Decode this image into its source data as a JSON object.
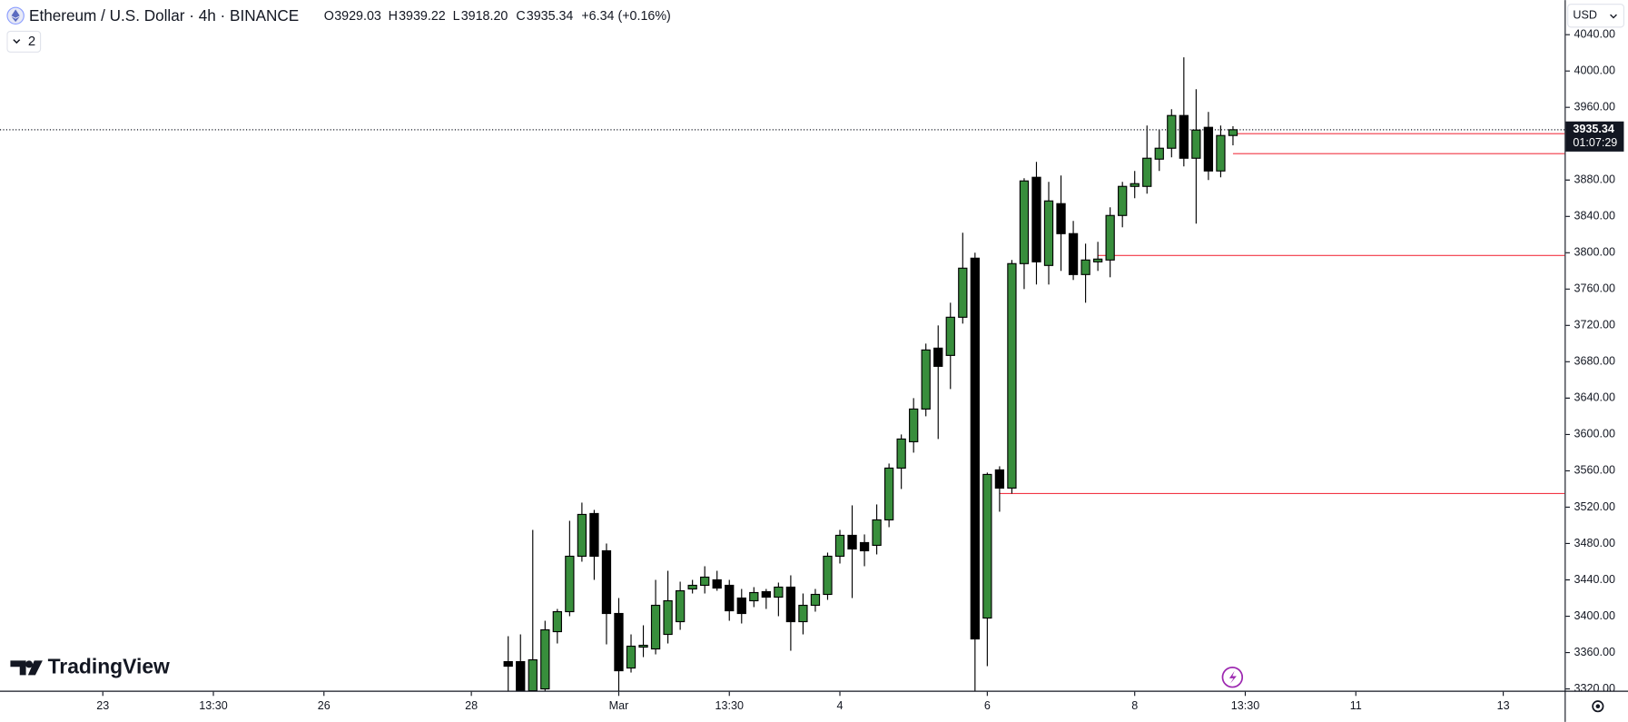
{
  "header": {
    "symbol": "Ethereum / U.S. Dollar · 4h · BINANCE",
    "ohlc": [
      {
        "label": "O",
        "value": "3929.03"
      },
      {
        "label": "H",
        "value": "3939.22"
      },
      {
        "label": "L",
        "value": "3918.20"
      },
      {
        "label": "C",
        "value": "3935.34"
      }
    ],
    "change": "+6.34 (+0.16%)",
    "indicators": "2"
  },
  "currency": "USD",
  "brand": "TradingView",
  "countdown": "01:07:29",
  "chart_data": {
    "type": "candlestick",
    "x": [
      33,
      34,
      35,
      36,
      37,
      38,
      39,
      40,
      41,
      42,
      43,
      44,
      45,
      46,
      47,
      48,
      49,
      50,
      51,
      52,
      53,
      54,
      55,
      56,
      57,
      58,
      59,
      60,
      61,
      62,
      63,
      64,
      65,
      66,
      67,
      68,
      69,
      70,
      71,
      72,
      73,
      74,
      75,
      76,
      77,
      78,
      79,
      80,
      81,
      82,
      83,
      84,
      85,
      86,
      87,
      88,
      89,
      90,
      91,
      92
    ],
    "open": [
      3350,
      3350,
      3318,
      3320,
      3383,
      3405,
      3466,
      3513,
      3472,
      3403,
      3343,
      3366,
      3364,
      3380,
      3394,
      3430,
      3434,
      3440,
      3434,
      3420,
      3417,
      3427,
      3421,
      3432,
      3394,
      3412,
      3424,
      3466,
      3489,
      3481,
      3478,
      3506,
      3563,
      3592,
      3628,
      3695,
      3687,
      3729,
      3794,
      3398,
      3561,
      3541,
      3788,
      3883,
      3786,
      3854,
      3821,
      3776,
      3790,
      3792,
      3841,
      3873,
      3873,
      3903,
      3915,
      3951,
      3904,
      3938,
      3890,
      3929.03
    ],
    "high": [
      3378,
      3380,
      3495,
      3395,
      3408,
      3505,
      3525,
      3517,
      3480,
      3420,
      3380,
      3390,
      3440,
      3450,
      3438,
      3440,
      3455,
      3450,
      3440,
      3430,
      3432,
      3430,
      3437,
      3445,
      3425,
      3430,
      3470,
      3495,
      3522,
      3490,
      3523,
      3568,
      3600,
      3640,
      3700,
      3720,
      3745,
      3822,
      3800,
      3558,
      3565,
      3792,
      3882,
      3900,
      3878,
      3885,
      3835,
      3810,
      3812,
      3850,
      3878,
      3890,
      3940,
      3935,
      3958,
      4015,
      3980,
      3955,
      3940,
      3939.22
    ],
    "low": [
      3318,
      3310,
      3310,
      3318,
      3370,
      3400,
      3460,
      3440,
      3369,
      3318,
      3338,
      3355,
      3358,
      3370,
      3385,
      3425,
      3425,
      3428,
      3395,
      3392,
      3410,
      3408,
      3400,
      3362,
      3380,
      3405,
      3418,
      3458,
      3420,
      3455,
      3468,
      3498,
      3540,
      3580,
      3620,
      3595,
      3650,
      3722,
      3318,
      3345,
      3515,
      3535,
      3760,
      3765,
      3765,
      3780,
      3770,
      3745,
      3780,
      3773,
      3828,
      3860,
      3865,
      3890,
      3905,
      3895,
      3832,
      3880,
      3883,
      3918.2
    ],
    "close": [
      3345,
      3318,
      3352,
      3385,
      3405,
      3466,
      3512,
      3466,
      3403,
      3340,
      3367,
      3368,
      3412,
      3417,
      3428,
      3434,
      3443,
      3431,
      3406,
      3403,
      3426,
      3421,
      3432,
      3394,
      3412,
      3424,
      3466,
      3489,
      3474,
      3472,
      3506,
      3563,
      3595,
      3628,
      3693,
      3675,
      3729,
      3783,
      3375,
      3556,
      3541,
      3788,
      3879,
      3790,
      3857,
      3821,
      3776,
      3792,
      3793,
      3841,
      3873,
      3876,
      3904,
      3915,
      3951,
      3904,
      3935,
      3890,
      3929,
      3935.34
    ],
    "up_color": "#388e3c",
    "down_color": "#000000",
    "xlim": [
      -8.37,
      119
    ],
    "xticks": [
      {
        "value": 0,
        "label": "23"
      },
      {
        "value": 9,
        "label": "13:30"
      },
      {
        "value": 18,
        "label": "26"
      },
      {
        "value": 30,
        "label": "28"
      },
      {
        "value": 42,
        "label": "Mar"
      },
      {
        "value": 51,
        "label": "13:30"
      },
      {
        "value": 60,
        "label": "4"
      },
      {
        "value": 72,
        "label": "6"
      },
      {
        "value": 84,
        "label": "8"
      },
      {
        "value": 93,
        "label": "13:30"
      },
      {
        "value": 102,
        "label": "11"
      },
      {
        "value": 114,
        "label": "13"
      }
    ],
    "ylim": [
      3318,
      4078
    ],
    "yticks": [
      {
        "value": 3320,
        "label": "3320.00"
      },
      {
        "value": 3360,
        "label": "3360.00"
      },
      {
        "value": 3400,
        "label": "3400.00"
      },
      {
        "value": 3440,
        "label": "3440.00"
      },
      {
        "value": 3480,
        "label": "3480.00"
      },
      {
        "value": 3520,
        "label": "3520.00"
      },
      {
        "value": 3560,
        "label": "3560.00"
      },
      {
        "value": 3600,
        "label": "3600.00"
      },
      {
        "value": 3640,
        "label": "3640.00"
      },
      {
        "value": 3680,
        "label": "3680.00"
      },
      {
        "value": 3720,
        "label": "3720.00"
      },
      {
        "value": 3760,
        "label": "3760.00"
      },
      {
        "value": 3800,
        "label": "3800.00"
      },
      {
        "value": 3840,
        "label": "3840.00"
      },
      {
        "value": 3880,
        "label": "3880.00"
      },
      {
        "value": 3920,
        "label": "3920.00"
      },
      {
        "value": 3960,
        "label": "3960.00"
      },
      {
        "value": 4000,
        "label": "4000.00"
      },
      {
        "value": 4040,
        "label": "4040.00"
      }
    ],
    "levels": {
      "values": [
        3931,
        3909,
        3797,
        3535
      ],
      "x": [
        92,
        92,
        81,
        73
      ],
      "color": "#f23645"
    },
    "last_price": 3935.34
  }
}
